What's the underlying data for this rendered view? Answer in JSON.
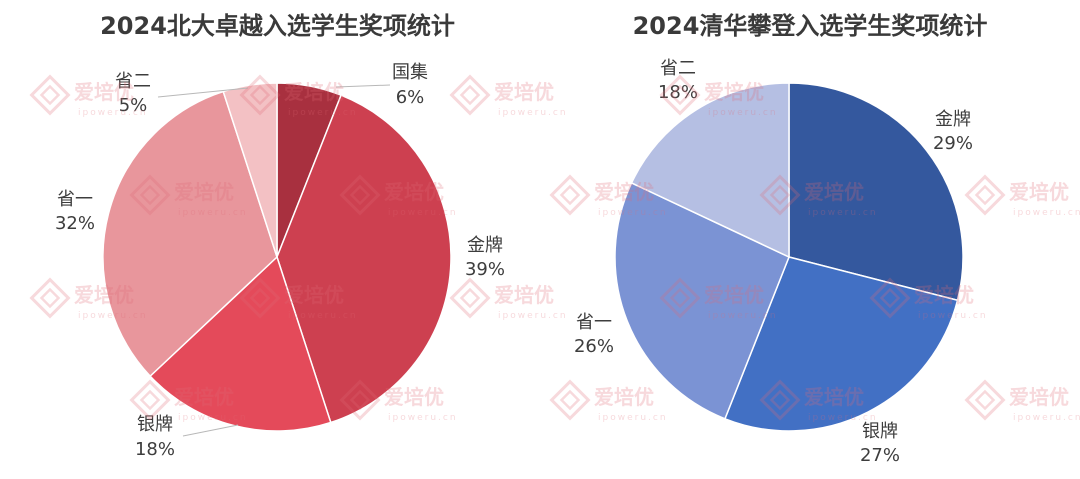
{
  "watermark": {
    "brand": "爱培优",
    "url": "ipoweru.cn"
  },
  "chart_data": [
    {
      "type": "pie",
      "title": "2024北大卓越入选学生奖项统计",
      "start_angle_deg": 0,
      "direction": "clockwise",
      "slices": [
        {
          "label": "国集",
          "value": 6,
          "display": "6%",
          "color": "#a8303f"
        },
        {
          "label": "金牌",
          "value": 39,
          "display": "39%",
          "color": "#cd4050"
        },
        {
          "label": "银牌",
          "value": 18,
          "display": "18%",
          "color": "#e44a5a"
        },
        {
          "label": "省一",
          "value": 32,
          "display": "32%",
          "color": "#e8969c"
        },
        {
          "label": "省二",
          "value": 5,
          "display": "5%",
          "color": "#f3c1c4"
        }
      ]
    },
    {
      "type": "pie",
      "title": "2024清华攀登入选学生奖项统计",
      "start_angle_deg": 0,
      "direction": "clockwise",
      "slices": [
        {
          "label": "金牌",
          "value": 29,
          "display": "29%",
          "color": "#34589e"
        },
        {
          "label": "银牌",
          "value": 27,
          "display": "27%",
          "color": "#4270c4"
        },
        {
          "label": "省一",
          "value": 26,
          "display": "26%",
          "color": "#7b93d4"
        },
        {
          "label": "省二",
          "value": 18,
          "display": "18%",
          "color": "#b5bfe3"
        }
      ]
    }
  ]
}
